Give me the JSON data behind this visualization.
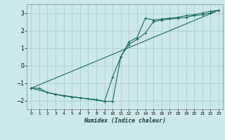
{
  "xlabel": "Humidex (Indice chaleur)",
  "bg_color": "#cde8e8",
  "grid_color": "#aacfcf",
  "line_color": "#1a6b5a",
  "xlim": [
    -0.5,
    23.5
  ],
  "ylim": [
    -2.5,
    3.5
  ],
  "yticks": [
    -2,
    -1,
    0,
    1,
    2,
    3
  ],
  "xticks": [
    0,
    1,
    2,
    3,
    4,
    5,
    6,
    7,
    8,
    9,
    10,
    11,
    12,
    13,
    14,
    15,
    16,
    17,
    18,
    19,
    20,
    21,
    22,
    23
  ],
  "line1_x": [
    0,
    1,
    2,
    3,
    4,
    5,
    6,
    7,
    8,
    9,
    10,
    11,
    12,
    13,
    14,
    15,
    16,
    17,
    18,
    19,
    20,
    21,
    22,
    23
  ],
  "line1_y": [
    -1.3,
    -1.3,
    -1.55,
    -1.65,
    -1.75,
    -1.8,
    -1.85,
    -1.9,
    -1.95,
    -2.05,
    -0.65,
    0.5,
    1.35,
    1.6,
    2.7,
    2.6,
    2.65,
    2.7,
    2.75,
    2.85,
    2.9,
    3.0,
    3.1,
    3.15
  ],
  "line2_x": [
    0,
    23
  ],
  "line2_y": [
    -1.3,
    3.15
  ],
  "line3_x": [
    0,
    3,
    9,
    10,
    11,
    12,
    13,
    14,
    15,
    16,
    17,
    18,
    19,
    20,
    21,
    22,
    23
  ],
  "line3_y": [
    -1.3,
    -1.65,
    -2.05,
    -2.05,
    0.5,
    1.2,
    1.5,
    1.85,
    2.5,
    2.6,
    2.65,
    2.7,
    2.75,
    2.85,
    2.9,
    3.0,
    3.15
  ]
}
